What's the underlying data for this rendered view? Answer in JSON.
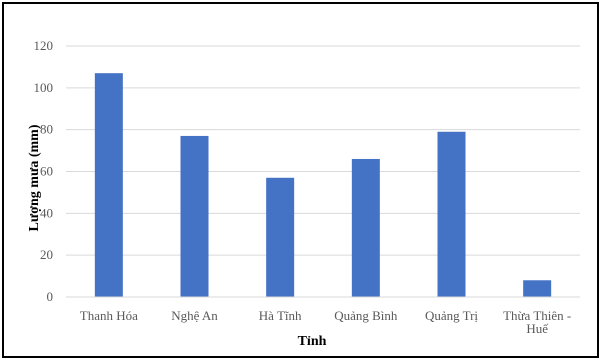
{
  "chart_data": {
    "type": "bar",
    "title": "",
    "xlabel": "Tỉnh",
    "ylabel": "Lượng mưa (mm)",
    "categories": [
      "Thanh Hóa",
      "Nghệ An",
      "Hà Tĩnh",
      "Quảng Bình",
      "Quảng Trị",
      "Thừa Thiên - Huế"
    ],
    "category_lines": [
      [
        "Thanh Hóa"
      ],
      [
        "Nghệ An"
      ],
      [
        "Hà Tĩnh"
      ],
      [
        "Quảng Bình"
      ],
      [
        "Quảng Trị"
      ],
      [
        "Thừa Thiên -",
        "Huế"
      ]
    ],
    "values": [
      107,
      77,
      57,
      66,
      79,
      8
    ],
    "ylim": [
      0,
      120
    ],
    "yticks": [
      0,
      20,
      40,
      60,
      80,
      100,
      120
    ],
    "grid": true,
    "legend": "none",
    "bar_color": "#4472C4",
    "grid_color": "#D9D9D9"
  }
}
